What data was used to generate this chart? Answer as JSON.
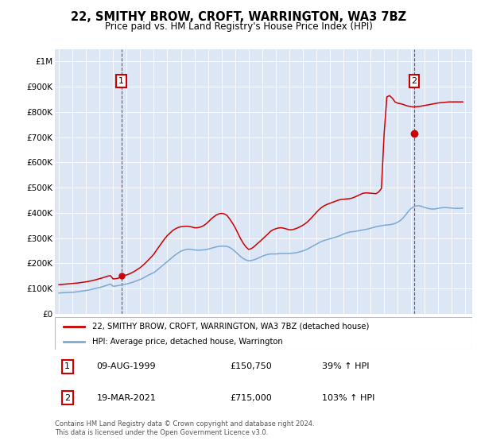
{
  "title": "22, SMITHY BROW, CROFT, WARRINGTON, WA3 7BZ",
  "subtitle": "Price paid vs. HM Land Registry's House Price Index (HPI)",
  "plot_bg": "#dce6f5",
  "hpi_color": "#7aaad4",
  "price_color": "#cc0000",
  "marker1_date_x": 1999.6,
  "marker1_price": 150750,
  "marker2_date_x": 2021.21,
  "marker2_price": 715000,
  "legend_label_red": "22, SMITHY BROW, CROFT, WARRINGTON, WA3 7BZ (detached house)",
  "legend_label_blue": "HPI: Average price, detached house, Warrington",
  "table_row1": [
    "1",
    "09-AUG-1999",
    "£150,750",
    "39% ↑ HPI"
  ],
  "table_row2": [
    "2",
    "19-MAR-2021",
    "£715,000",
    "103% ↑ HPI"
  ],
  "footer": "Contains HM Land Registry data © Crown copyright and database right 2024.\nThis data is licensed under the Open Government Licence v3.0.",
  "ylim": [
    0,
    1050000
  ],
  "xlim_start": 1994.7,
  "xlim_end": 2025.5,
  "yticks": [
    0,
    100000,
    200000,
    300000,
    400000,
    500000,
    600000,
    700000,
    800000,
    900000,
    1000000
  ],
  "ytick_labels": [
    "£0",
    "£100K",
    "£200K",
    "£300K",
    "£400K",
    "£500K",
    "£600K",
    "£700K",
    "£800K",
    "£900K",
    "£1M"
  ],
  "xticks": [
    1995,
    1996,
    1997,
    1998,
    1999,
    2000,
    2001,
    2002,
    2003,
    2004,
    2005,
    2006,
    2007,
    2008,
    2009,
    2010,
    2011,
    2012,
    2013,
    2014,
    2015,
    2016,
    2017,
    2018,
    2019,
    2020,
    2021,
    2022,
    2023,
    2024,
    2025
  ],
  "hpi_data_x": [
    1995.0,
    1995.2,
    1995.4,
    1995.6,
    1995.8,
    1996.0,
    1996.2,
    1996.4,
    1996.6,
    1996.8,
    1997.0,
    1997.2,
    1997.4,
    1997.6,
    1997.8,
    1998.0,
    1998.2,
    1998.4,
    1998.6,
    1998.8,
    1999.0,
    1999.2,
    1999.4,
    1999.6,
    1999.8,
    2000.0,
    2000.2,
    2000.4,
    2000.6,
    2000.8,
    2001.0,
    2001.2,
    2001.4,
    2001.6,
    2001.8,
    2002.0,
    2002.2,
    2002.4,
    2002.6,
    2002.8,
    2003.0,
    2003.2,
    2003.4,
    2003.6,
    2003.8,
    2004.0,
    2004.2,
    2004.4,
    2004.6,
    2004.8,
    2005.0,
    2005.2,
    2005.4,
    2005.6,
    2005.8,
    2006.0,
    2006.2,
    2006.4,
    2006.6,
    2006.8,
    2007.0,
    2007.2,
    2007.4,
    2007.6,
    2007.8,
    2008.0,
    2008.2,
    2008.4,
    2008.6,
    2008.8,
    2009.0,
    2009.2,
    2009.4,
    2009.6,
    2009.8,
    2010.0,
    2010.2,
    2010.4,
    2010.6,
    2010.8,
    2011.0,
    2011.2,
    2011.4,
    2011.6,
    2011.8,
    2012.0,
    2012.2,
    2012.4,
    2012.6,
    2012.8,
    2013.0,
    2013.2,
    2013.4,
    2013.6,
    2013.8,
    2014.0,
    2014.2,
    2014.4,
    2014.6,
    2014.8,
    2015.0,
    2015.2,
    2015.4,
    2015.6,
    2015.8,
    2016.0,
    2016.2,
    2016.4,
    2016.6,
    2016.8,
    2017.0,
    2017.2,
    2017.4,
    2017.6,
    2017.8,
    2018.0,
    2018.2,
    2018.4,
    2018.6,
    2018.8,
    2019.0,
    2019.2,
    2019.4,
    2019.6,
    2019.8,
    2020.0,
    2020.2,
    2020.4,
    2020.6,
    2020.8,
    2021.0,
    2021.2,
    2021.4,
    2021.6,
    2021.8,
    2022.0,
    2022.2,
    2022.4,
    2022.6,
    2022.8,
    2023.0,
    2023.2,
    2023.4,
    2023.6,
    2023.8,
    2024.0,
    2024.2,
    2024.4,
    2024.6,
    2024.8
  ],
  "hpi_data_y": [
    82000,
    83000,
    83500,
    84000,
    84500,
    85000,
    86000,
    87500,
    89000,
    90500,
    92000,
    94000,
    96500,
    99000,
    101500,
    104000,
    107000,
    110500,
    114000,
    117500,
    109000,
    110000,
    112000,
    114000,
    116000,
    118000,
    121000,
    124000,
    128000,
    132000,
    136000,
    141000,
    147000,
    153000,
    158000,
    163000,
    171000,
    180000,
    189000,
    198000,
    207000,
    216000,
    225000,
    234000,
    241000,
    248000,
    252000,
    255000,
    256000,
    255000,
    253000,
    252000,
    252000,
    253000,
    254000,
    256000,
    259000,
    262000,
    265000,
    267000,
    268000,
    268000,
    267000,
    263000,
    256000,
    247000,
    237000,
    227000,
    219000,
    213000,
    210000,
    211000,
    214000,
    218000,
    223000,
    228000,
    232000,
    235000,
    237000,
    237000,
    237000,
    238000,
    239000,
    239000,
    239000,
    239000,
    240000,
    241000,
    243000,
    246000,
    249000,
    253000,
    258000,
    264000,
    270000,
    276000,
    282000,
    287000,
    291000,
    294000,
    297000,
    300000,
    303000,
    307000,
    311000,
    316000,
    320000,
    323000,
    325000,
    326000,
    328000,
    330000,
    332000,
    334000,
    336000,
    339000,
    342000,
    345000,
    347000,
    349000,
    351000,
    352000,
    353000,
    355000,
    358000,
    363000,
    370000,
    380000,
    393000,
    407000,
    418000,
    425000,
    428000,
    428000,
    425000,
    421000,
    418000,
    416000,
    415000,
    416000,
    418000,
    420000,
    421000,
    421000,
    420000,
    419000,
    418000,
    418000,
    418000,
    419000
  ],
  "red_data_x": [
    1995.0,
    1995.2,
    1995.4,
    1995.6,
    1995.8,
    1996.0,
    1996.2,
    1996.4,
    1996.6,
    1996.8,
    1997.0,
    1997.2,
    1997.4,
    1997.6,
    1997.8,
    1998.0,
    1998.2,
    1998.4,
    1998.6,
    1998.8,
    1999.0,
    1999.2,
    1999.4,
    1999.6,
    1999.8,
    2000.0,
    2000.2,
    2000.4,
    2000.6,
    2000.8,
    2001.0,
    2001.2,
    2001.4,
    2001.6,
    2001.8,
    2002.0,
    2002.2,
    2002.4,
    2002.6,
    2002.8,
    2003.0,
    2003.2,
    2003.4,
    2003.6,
    2003.8,
    2004.0,
    2004.2,
    2004.4,
    2004.6,
    2004.8,
    2005.0,
    2005.2,
    2005.4,
    2005.6,
    2005.8,
    2006.0,
    2006.2,
    2006.4,
    2006.6,
    2006.8,
    2007.0,
    2007.2,
    2007.4,
    2007.6,
    2007.8,
    2008.0,
    2008.2,
    2008.4,
    2008.6,
    2008.8,
    2009.0,
    2009.2,
    2009.4,
    2009.6,
    2009.8,
    2010.0,
    2010.2,
    2010.4,
    2010.6,
    2010.8,
    2011.0,
    2011.2,
    2011.4,
    2011.6,
    2011.8,
    2012.0,
    2012.2,
    2012.4,
    2012.6,
    2012.8,
    2013.0,
    2013.2,
    2013.4,
    2013.6,
    2013.8,
    2014.0,
    2014.2,
    2014.4,
    2014.6,
    2014.8,
    2015.0,
    2015.2,
    2015.4,
    2015.6,
    2015.8,
    2016.0,
    2016.2,
    2016.4,
    2016.6,
    2016.8,
    2017.0,
    2017.2,
    2017.4,
    2017.6,
    2017.8,
    2018.0,
    2018.2,
    2018.4,
    2018.6,
    2018.8,
    2019.0,
    2019.2,
    2019.4,
    2019.6,
    2019.8,
    2020.0,
    2020.2,
    2020.4,
    2020.6,
    2020.8,
    2021.0,
    2021.2,
    2021.4,
    2021.6,
    2021.8,
    2022.0,
    2022.2,
    2022.4,
    2022.6,
    2022.8,
    2023.0,
    2023.2,
    2023.4,
    2023.6,
    2023.8,
    2024.0,
    2024.2,
    2024.4,
    2024.6,
    2024.8
  ],
  "red_data_y": [
    115000,
    116000,
    117000,
    118000,
    119000,
    120000,
    121000,
    122000,
    123500,
    125000,
    126500,
    128500,
    130500,
    133000,
    136000,
    139000,
    142000,
    145500,
    149000,
    151000,
    138000,
    139000,
    141000,
    150750,
    152000,
    154000,
    158000,
    163000,
    169000,
    176000,
    183000,
    192000,
    202000,
    213000,
    224000,
    236000,
    252000,
    267000,
    282000,
    297000,
    310000,
    320000,
    330000,
    337000,
    342000,
    345000,
    346000,
    347000,
    346000,
    344000,
    341000,
    341000,
    343000,
    347000,
    354000,
    363000,
    374000,
    383000,
    391000,
    396000,
    398000,
    396000,
    390000,
    376000,
    360000,
    342000,
    320000,
    298000,
    280000,
    265000,
    255000,
    258000,
    266000,
    276000,
    285000,
    295000,
    305000,
    315000,
    326000,
    333000,
    337000,
    340000,
    341000,
    339000,
    336000,
    333000,
    333000,
    336000,
    340000,
    345000,
    351000,
    358000,
    367000,
    378000,
    390000,
    402000,
    413000,
    422000,
    429000,
    434000,
    438000,
    442000,
    446000,
    450000,
    453000,
    454000,
    455000,
    456000,
    458000,
    462000,
    467000,
    472000,
    477000,
    479000,
    479000,
    478000,
    477000,
    476000,
    483000,
    497000,
    715000,
    860000,
    865000,
    855000,
    840000,
    835000,
    833000,
    830000,
    826000,
    823000,
    821000,
    820000,
    821000,
    822000,
    824000,
    826000,
    828000,
    830000,
    832000,
    834000,
    836000,
    837000,
    838000,
    839000,
    840000,
    840000,
    840000,
    840000,
    840000,
    840000
  ]
}
